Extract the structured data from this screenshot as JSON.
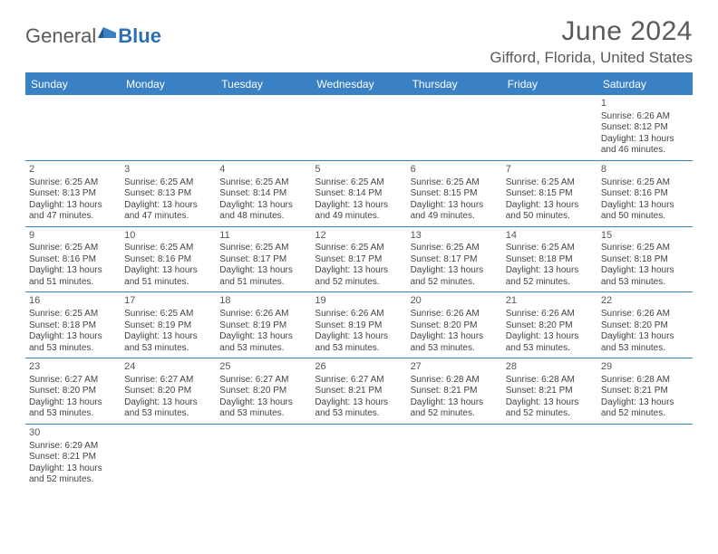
{
  "logo": {
    "part1": "General",
    "part2": "Blue"
  },
  "title": "June 2024",
  "location": "Gifford, Florida, United States",
  "colors": {
    "header_bg": "#3a80c4",
    "header_text": "#ffffff",
    "rule": "#3a80c4",
    "text": "#444444",
    "logo_accent": "#2d6fb5"
  },
  "day_names": [
    "Sunday",
    "Monday",
    "Tuesday",
    "Wednesday",
    "Thursday",
    "Friday",
    "Saturday"
  ],
  "weeks": [
    [
      null,
      null,
      null,
      null,
      null,
      null,
      {
        "n": "1",
        "sr": "Sunrise: 6:26 AM",
        "ss": "Sunset: 8:12 PM",
        "d1": "Daylight: 13 hours",
        "d2": "and 46 minutes."
      }
    ],
    [
      {
        "n": "2",
        "sr": "Sunrise: 6:25 AM",
        "ss": "Sunset: 8:13 PM",
        "d1": "Daylight: 13 hours",
        "d2": "and 47 minutes."
      },
      {
        "n": "3",
        "sr": "Sunrise: 6:25 AM",
        "ss": "Sunset: 8:13 PM",
        "d1": "Daylight: 13 hours",
        "d2": "and 47 minutes."
      },
      {
        "n": "4",
        "sr": "Sunrise: 6:25 AM",
        "ss": "Sunset: 8:14 PM",
        "d1": "Daylight: 13 hours",
        "d2": "and 48 minutes."
      },
      {
        "n": "5",
        "sr": "Sunrise: 6:25 AM",
        "ss": "Sunset: 8:14 PM",
        "d1": "Daylight: 13 hours",
        "d2": "and 49 minutes."
      },
      {
        "n": "6",
        "sr": "Sunrise: 6:25 AM",
        "ss": "Sunset: 8:15 PM",
        "d1": "Daylight: 13 hours",
        "d2": "and 49 minutes."
      },
      {
        "n": "7",
        "sr": "Sunrise: 6:25 AM",
        "ss": "Sunset: 8:15 PM",
        "d1": "Daylight: 13 hours",
        "d2": "and 50 minutes."
      },
      {
        "n": "8",
        "sr": "Sunrise: 6:25 AM",
        "ss": "Sunset: 8:16 PM",
        "d1": "Daylight: 13 hours",
        "d2": "and 50 minutes."
      }
    ],
    [
      {
        "n": "9",
        "sr": "Sunrise: 6:25 AM",
        "ss": "Sunset: 8:16 PM",
        "d1": "Daylight: 13 hours",
        "d2": "and 51 minutes."
      },
      {
        "n": "10",
        "sr": "Sunrise: 6:25 AM",
        "ss": "Sunset: 8:16 PM",
        "d1": "Daylight: 13 hours",
        "d2": "and 51 minutes."
      },
      {
        "n": "11",
        "sr": "Sunrise: 6:25 AM",
        "ss": "Sunset: 8:17 PM",
        "d1": "Daylight: 13 hours",
        "d2": "and 51 minutes."
      },
      {
        "n": "12",
        "sr": "Sunrise: 6:25 AM",
        "ss": "Sunset: 8:17 PM",
        "d1": "Daylight: 13 hours",
        "d2": "and 52 minutes."
      },
      {
        "n": "13",
        "sr": "Sunrise: 6:25 AM",
        "ss": "Sunset: 8:17 PM",
        "d1": "Daylight: 13 hours",
        "d2": "and 52 minutes."
      },
      {
        "n": "14",
        "sr": "Sunrise: 6:25 AM",
        "ss": "Sunset: 8:18 PM",
        "d1": "Daylight: 13 hours",
        "d2": "and 52 minutes."
      },
      {
        "n": "15",
        "sr": "Sunrise: 6:25 AM",
        "ss": "Sunset: 8:18 PM",
        "d1": "Daylight: 13 hours",
        "d2": "and 53 minutes."
      }
    ],
    [
      {
        "n": "16",
        "sr": "Sunrise: 6:25 AM",
        "ss": "Sunset: 8:18 PM",
        "d1": "Daylight: 13 hours",
        "d2": "and 53 minutes."
      },
      {
        "n": "17",
        "sr": "Sunrise: 6:25 AM",
        "ss": "Sunset: 8:19 PM",
        "d1": "Daylight: 13 hours",
        "d2": "and 53 minutes."
      },
      {
        "n": "18",
        "sr": "Sunrise: 6:26 AM",
        "ss": "Sunset: 8:19 PM",
        "d1": "Daylight: 13 hours",
        "d2": "and 53 minutes."
      },
      {
        "n": "19",
        "sr": "Sunrise: 6:26 AM",
        "ss": "Sunset: 8:19 PM",
        "d1": "Daylight: 13 hours",
        "d2": "and 53 minutes."
      },
      {
        "n": "20",
        "sr": "Sunrise: 6:26 AM",
        "ss": "Sunset: 8:20 PM",
        "d1": "Daylight: 13 hours",
        "d2": "and 53 minutes."
      },
      {
        "n": "21",
        "sr": "Sunrise: 6:26 AM",
        "ss": "Sunset: 8:20 PM",
        "d1": "Daylight: 13 hours",
        "d2": "and 53 minutes."
      },
      {
        "n": "22",
        "sr": "Sunrise: 6:26 AM",
        "ss": "Sunset: 8:20 PM",
        "d1": "Daylight: 13 hours",
        "d2": "and 53 minutes."
      }
    ],
    [
      {
        "n": "23",
        "sr": "Sunrise: 6:27 AM",
        "ss": "Sunset: 8:20 PM",
        "d1": "Daylight: 13 hours",
        "d2": "and 53 minutes."
      },
      {
        "n": "24",
        "sr": "Sunrise: 6:27 AM",
        "ss": "Sunset: 8:20 PM",
        "d1": "Daylight: 13 hours",
        "d2": "and 53 minutes."
      },
      {
        "n": "25",
        "sr": "Sunrise: 6:27 AM",
        "ss": "Sunset: 8:20 PM",
        "d1": "Daylight: 13 hours",
        "d2": "and 53 minutes."
      },
      {
        "n": "26",
        "sr": "Sunrise: 6:27 AM",
        "ss": "Sunset: 8:21 PM",
        "d1": "Daylight: 13 hours",
        "d2": "and 53 minutes."
      },
      {
        "n": "27",
        "sr": "Sunrise: 6:28 AM",
        "ss": "Sunset: 8:21 PM",
        "d1": "Daylight: 13 hours",
        "d2": "and 52 minutes."
      },
      {
        "n": "28",
        "sr": "Sunrise: 6:28 AM",
        "ss": "Sunset: 8:21 PM",
        "d1": "Daylight: 13 hours",
        "d2": "and 52 minutes."
      },
      {
        "n": "29",
        "sr": "Sunrise: 6:28 AM",
        "ss": "Sunset: 8:21 PM",
        "d1": "Daylight: 13 hours",
        "d2": "and 52 minutes."
      }
    ],
    [
      {
        "n": "30",
        "sr": "Sunrise: 6:29 AM",
        "ss": "Sunset: 8:21 PM",
        "d1": "Daylight: 13 hours",
        "d2": "and 52 minutes."
      },
      null,
      null,
      null,
      null,
      null,
      null
    ]
  ]
}
